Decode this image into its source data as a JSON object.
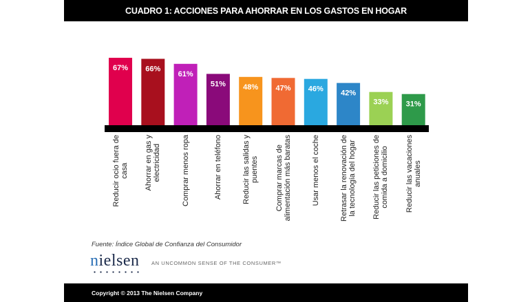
{
  "header": {
    "title": "CUADRO 1: ACCIONES PARA AHORRAR EN LOS GASTOS EN HOGAR"
  },
  "chart_data": {
    "type": "bar",
    "title": "CUADRO 1: ACCIONES PARA AHORRAR EN LOS GASTOS EN HOGAR",
    "xlabel": "",
    "ylabel": "",
    "ylim": [
      0,
      70
    ],
    "grid": false,
    "legend": "none",
    "categories": [
      "Reducir ocio fuera de casa",
      "Ahorrar en gas y electricidad",
      "Comprar menos ropa",
      "Ahorrar en teléfono",
      "Reducir las salidas y puentes",
      "Comprar marcas de alimentación más baratas",
      "Usar menos el coche",
      "Retrasar la renovación de la tecnología del hogar",
      "Reducir las peticiones de comida a domicilio",
      "Reducir las vacaciones anuales"
    ],
    "category_lines": [
      [
        "Reducir ocio fuera de",
        "casa"
      ],
      [
        "Ahorrar en gas y",
        "electricidad"
      ],
      [
        "Comprar menos ropa"
      ],
      [
        "Ahorrar en teléfono"
      ],
      [
        "Reducir las salidas y",
        "puentes"
      ],
      [
        "Comprar marcas de",
        "alimentación más baratas"
      ],
      [
        "Usar menos el coche"
      ],
      [
        "Retrasar la renovación de",
        "la tecnología del hogar"
      ],
      [
        "Reducir las peticiones de",
        "comida a domicilio"
      ],
      [
        "Reducir las vacaciones",
        "anuales"
      ]
    ],
    "values": [
      67,
      66,
      61,
      51,
      48,
      47,
      46,
      42,
      33,
      31
    ],
    "data_labels": [
      "67%",
      "66%",
      "61%",
      "51%",
      "48%",
      "47%",
      "46%",
      "42%",
      "33%",
      "31%"
    ],
    "colors": [
      "#e0004d",
      "#a8101e",
      "#c020b8",
      "#8a0a7a",
      "#f7941d",
      "#f06a33",
      "#2aa8e0",
      "#2d86c8",
      "#9bd154",
      "#2e9a4a"
    ],
    "axis_color": "#000000"
  },
  "source": "Fuente: Índice Global de Confianza del Consumidor",
  "brand": {
    "logo_first": "n",
    "logo_rest": "ielsen",
    "tagline": "AN UNCOMMON SENSE OF THE CONSUMER™"
  },
  "footer": {
    "copyright": "Copyright © 2013 The Nielsen Company"
  }
}
